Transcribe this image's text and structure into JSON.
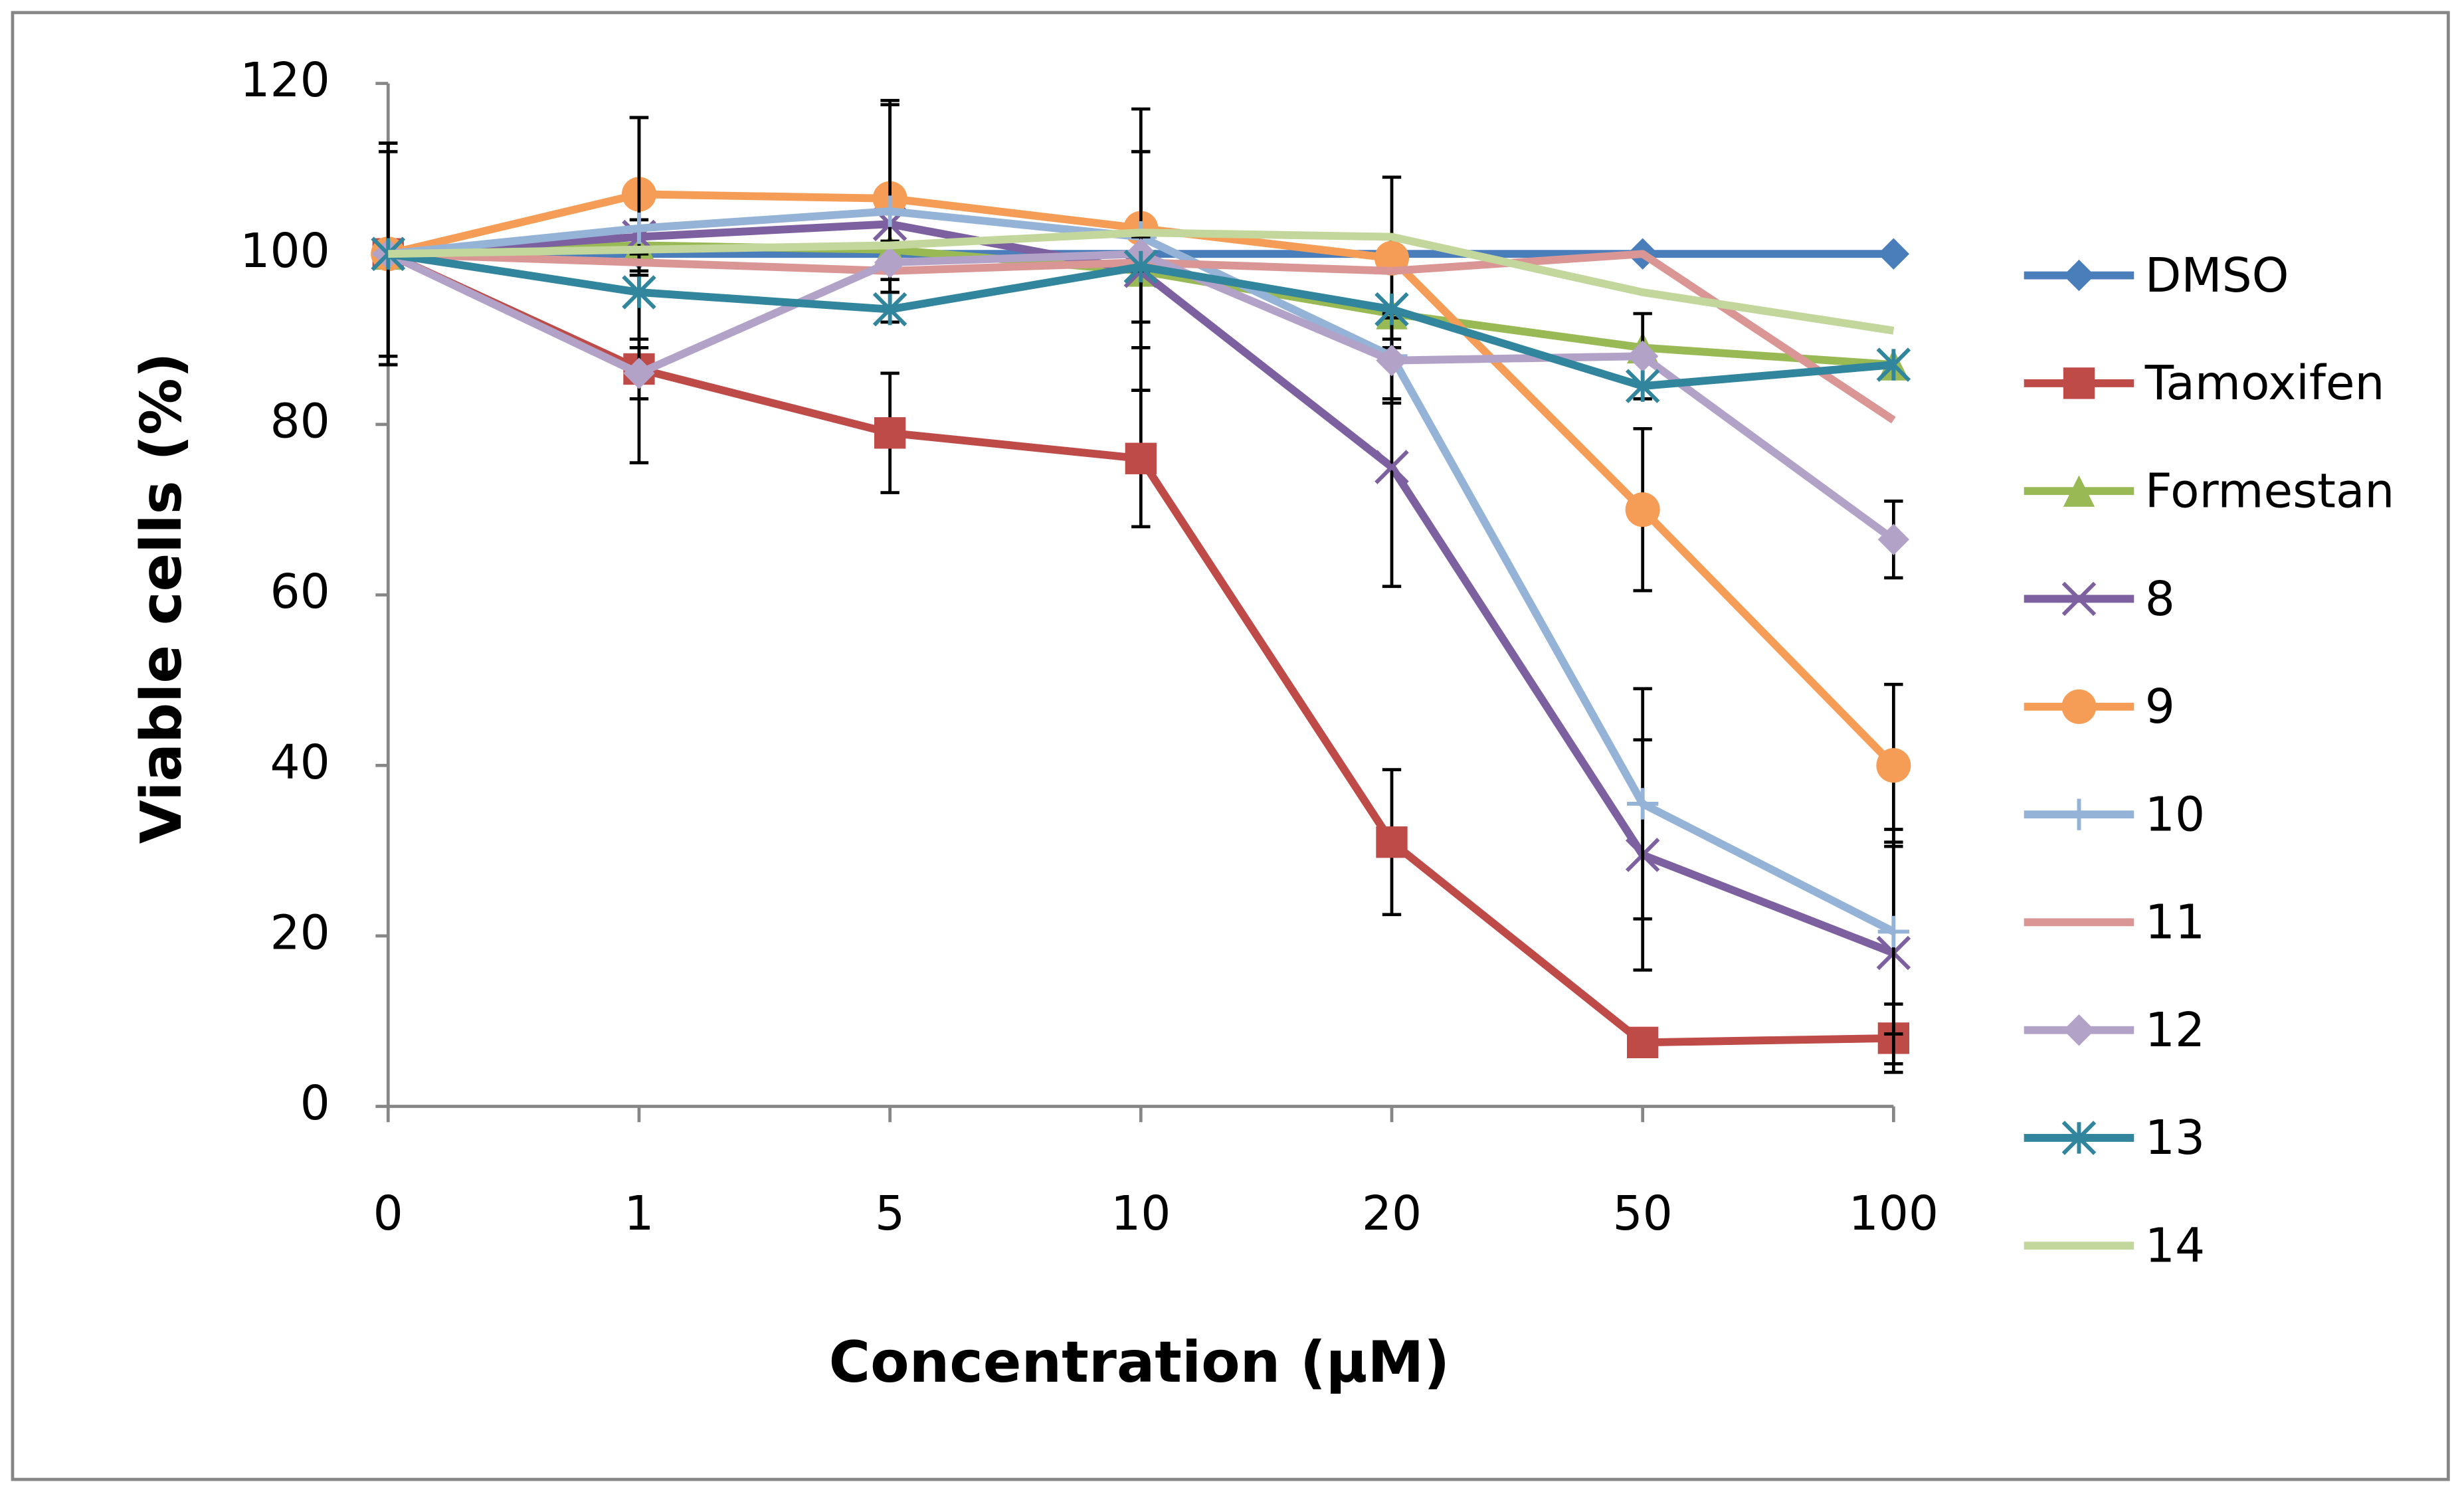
{
  "chart_data": {
    "type": "line",
    "x_label": "Concentration (μM)",
    "y_label": "Viable cells (%)",
    "categories": [
      "0",
      "1",
      "5",
      "10",
      "20",
      "50",
      "100"
    ],
    "ylim": [
      0,
      120
    ],
    "yticks": [
      0,
      20,
      40,
      60,
      80,
      100,
      120
    ],
    "legend": "right",
    "series": [
      {
        "name": "DMSO",
        "color": "#4a7ebb",
        "marker": "diamond",
        "values": [
          100,
          100,
          100,
          100,
          100,
          100,
          100
        ]
      },
      {
        "name": "Tamoxifen",
        "color": "#be4b48",
        "marker": "square",
        "values": [
          100,
          86.5,
          79,
          76,
          31,
          7.5,
          8
        ],
        "errors": [
          13,
          11,
          7,
          8,
          8.5,
          1,
          4
        ]
      },
      {
        "name": "Formestan",
        "color": "#98b954",
        "marker": "triangle",
        "values": [
          100,
          101,
          100.5,
          98,
          93,
          89,
          87
        ]
      },
      {
        "name": "8",
        "color": "#7d60a0",
        "marker": "x",
        "values": [
          100,
          102,
          103.5,
          98,
          75,
          29.5,
          18
        ],
        "errors": [
          13,
          2,
          2,
          14,
          14,
          13.5,
          13
        ]
      },
      {
        "name": "9",
        "color": "#f59d56",
        "marker": "circle",
        "values": [
          100,
          107,
          106.5,
          103,
          99.5,
          70,
          40
        ],
        "errors": [
          13,
          9,
          11,
          14,
          9.5,
          9.5,
          9.5
        ]
      },
      {
        "name": "10",
        "color": "#95b3d7",
        "marker": "plus",
        "values": [
          100,
          103,
          105,
          102,
          88,
          35.5,
          20.5
        ],
        "errors": [
          12,
          13,
          13,
          10,
          5,
          13.5,
          12
        ]
      },
      {
        "name": "11",
        "color": "#d99694",
        "marker": "none",
        "values": [
          100,
          99,
          98,
          99,
          98,
          100,
          80.5
        ]
      },
      {
        "name": "12",
        "color": "#b3a2c7",
        "marker": "diamond",
        "values": [
          100,
          86,
          99,
          100,
          87.5,
          88,
          66.5
        ],
        "errors": [
          13,
          3,
          2,
          2,
          5,
          5,
          4.5
        ]
      },
      {
        "name": "13",
        "color": "#31859c",
        "marker": "star",
        "values": [
          100,
          95.5,
          93.5,
          98.5,
          93.5,
          84.5,
          87
        ]
      },
      {
        "name": "14",
        "color": "#c3d69b",
        "marker": "none",
        "values": [
          100,
          100.5,
          101,
          102.5,
          102,
          95.5,
          91
        ]
      }
    ]
  }
}
